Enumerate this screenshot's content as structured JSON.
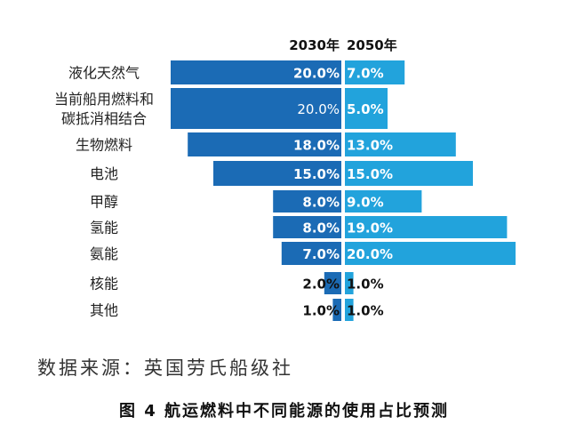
{
  "chart_data": {
    "type": "bar",
    "orientation": "horizontal-butterfly",
    "unit": "%",
    "categories": [
      "液化天然气",
      "当前船用燃料和碳抵消相结合",
      "生物燃料",
      "电池",
      "甲醇",
      "氢能",
      "氨能",
      "核能",
      "其他"
    ],
    "category_lines": [
      [
        "液化天然气"
      ],
      [
        "当前船用燃料和",
        "碳抵消相结合"
      ],
      [
        "生物燃料"
      ],
      [
        "电池"
      ],
      [
        "甲醇"
      ],
      [
        "氢能"
      ],
      [
        "氨能"
      ],
      [
        "核能"
      ],
      [
        "其他"
      ]
    ],
    "series": [
      {
        "name": "2030年",
        "values": [
          20.0,
          20.0,
          18.0,
          15.0,
          8.0,
          8.0,
          7.0,
          2.0,
          1.0
        ],
        "labels": [
          "20.0%",
          "20.0%",
          "18.0%",
          "15.0%",
          "8.0%",
          "8.0%",
          "7.0%",
          "2.0%",
          "1.0%"
        ],
        "color": "#1b6bb5"
      },
      {
        "name": "2050年",
        "values": [
          7.0,
          5.0,
          13.0,
          15.0,
          9.0,
          19.0,
          20.0,
          1.0,
          1.0
        ],
        "labels": [
          "7.0%",
          "5.0%",
          "13.0%",
          "15.0%",
          "9.0%",
          "19.0%",
          "20.0%",
          "1.0%",
          "1.0%"
        ],
        "color": "#22a3dc"
      }
    ],
    "xlim": [
      0,
      20
    ],
    "grid": false,
    "legend": "top"
  },
  "source_text": "数据来源：英国劳氏船级社",
  "caption": "图 4 航运燃料中不同能源的使用占比预测"
}
